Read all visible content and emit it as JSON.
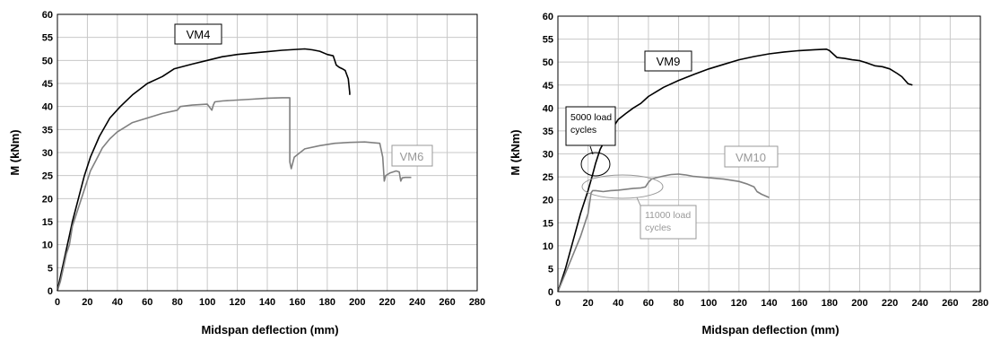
{
  "chart_data": [
    {
      "type": "line",
      "xlabel": "Midspan deflection (mm)",
      "ylabel": "M (kNm)",
      "xlim": [
        0,
        280
      ],
      "ylim": [
        0,
        60
      ],
      "xticks": [
        0,
        20,
        40,
        60,
        80,
        100,
        120,
        140,
        160,
        180,
        200,
        220,
        240,
        260,
        280
      ],
      "yticks": [
        0,
        5,
        10,
        15,
        20,
        25,
        30,
        35,
        40,
        45,
        50,
        55,
        60
      ],
      "grid": true,
      "series": [
        {
          "name": "VM4",
          "color": "#000000",
          "x": [
            0,
            2,
            4,
            6,
            8,
            10,
            14,
            18,
            22,
            28,
            35,
            42,
            50,
            60,
            70,
            78,
            90,
            100,
            110,
            120,
            130,
            140,
            150,
            160,
            165,
            170,
            175,
            180,
            184,
            186,
            188,
            190,
            192,
            194,
            195,
            195
          ],
          "y": [
            0,
            3,
            6,
            9,
            12,
            15,
            20,
            25,
            29,
            33.5,
            37.5,
            40,
            42.5,
            45,
            46.5,
            48.2,
            49.2,
            50,
            50.8,
            51.3,
            51.6,
            51.9,
            52.2,
            52.4,
            52.5,
            52.3,
            52,
            51.3,
            51,
            49,
            48.5,
            48.2,
            47.8,
            46,
            43,
            42.5
          ]
        },
        {
          "name": "VM6",
          "color": "#808080",
          "x": [
            0,
            2,
            4,
            6,
            8,
            10,
            14,
            18,
            22,
            26,
            30,
            35,
            40,
            45,
            50,
            60,
            70,
            80,
            82,
            90,
            100,
            103,
            104,
            105,
            110,
            120,
            130,
            140,
            150,
            155,
            155,
            156,
            158,
            165,
            175,
            185,
            195,
            205,
            215,
            217,
            218,
            219,
            222,
            226,
            228,
            229,
            230,
            232,
            236
          ],
          "y": [
            0,
            2,
            5,
            8,
            10,
            14,
            18,
            22,
            26,
            28.5,
            31,
            33,
            34.5,
            35.5,
            36.5,
            37.5,
            38.5,
            39.2,
            40,
            40.3,
            40.5,
            39.2,
            40.3,
            41,
            41.2,
            41.4,
            41.6,
            41.8,
            41.9,
            41.9,
            28,
            26.5,
            29,
            30.8,
            31.5,
            32,
            32.2,
            32.3,
            32,
            29,
            23.8,
            25,
            25.6,
            26,
            25.8,
            23.8,
            24.5,
            24.6,
            24.6
          ]
        }
      ],
      "annotations": []
    },
    {
      "type": "line",
      "xlabel": "Midspan deflection (mm)",
      "ylabel": "M (kNm)",
      "xlim": [
        0,
        280
      ],
      "ylim": [
        0,
        60
      ],
      "xticks": [
        0,
        20,
        40,
        60,
        80,
        100,
        120,
        140,
        160,
        180,
        200,
        220,
        240,
        260,
        280
      ],
      "yticks": [
        0,
        5,
        10,
        15,
        20,
        25,
        30,
        35,
        40,
        45,
        50,
        55,
        60
      ],
      "grid": true,
      "series": [
        {
          "name": "VM9",
          "color": "#000000",
          "x": [
            0,
            5,
            10,
            15,
            20,
            23,
            25,
            28,
            32,
            36,
            40,
            45,
            50,
            55,
            60,
            65,
            70,
            80,
            90,
            100,
            110,
            120,
            130,
            140,
            150,
            160,
            170,
            178,
            180,
            185,
            190,
            195,
            200,
            205,
            210,
            215,
            220,
            225,
            228,
            232,
            235
          ],
          "y": [
            0,
            5,
            11,
            17,
            22,
            25.5,
            28,
            31,
            33.5,
            35.5,
            37.5,
            38.8,
            40,
            41,
            42.5,
            43.5,
            44.5,
            46,
            47.3,
            48.5,
            49.5,
            50.5,
            51.2,
            51.8,
            52.2,
            52.5,
            52.7,
            52.8,
            52.5,
            51,
            50.8,
            50.5,
            50.3,
            49.8,
            49.2,
            49,
            48.5,
            47.5,
            46.8,
            45.3,
            45
          ]
        },
        {
          "name": "VM10",
          "color": "#808080",
          "x": [
            0,
            5,
            10,
            15,
            20,
            22,
            23,
            25,
            30,
            35,
            40,
            45,
            50,
            55,
            58,
            60,
            62,
            65,
            70,
            75,
            80,
            85,
            90,
            100,
            110,
            120,
            125,
            130,
            132,
            135,
            140
          ],
          "y": [
            0,
            4,
            8,
            12,
            17,
            21.5,
            22,
            22,
            21.8,
            22,
            22.1,
            22.3,
            22.5,
            22.6,
            22.8,
            23.8,
            24.5,
            24.8,
            25.2,
            25.5,
            25.6,
            25.4,
            25.1,
            24.8,
            24.5,
            24,
            23.5,
            22.8,
            21.8,
            21.2,
            20.5
          ]
        }
      ],
      "annotations": [
        "5000 load cycles",
        "11000 load cycles"
      ]
    }
  ],
  "left": {
    "ylabel": "M (kNm)",
    "xlabel": "Midspan deflection (mm)",
    "label_vm4": "VM4",
    "label_vm6": "VM6"
  },
  "right": {
    "ylabel": "M (kNm)",
    "xlabel": "Midspan deflection (mm)",
    "label_vm9": "VM9",
    "label_vm10": "VM10",
    "note1_line1": "5000 load",
    "note1_line2": "cycles",
    "note2_line1": "11000 load",
    "note2_line2": "cycles"
  }
}
